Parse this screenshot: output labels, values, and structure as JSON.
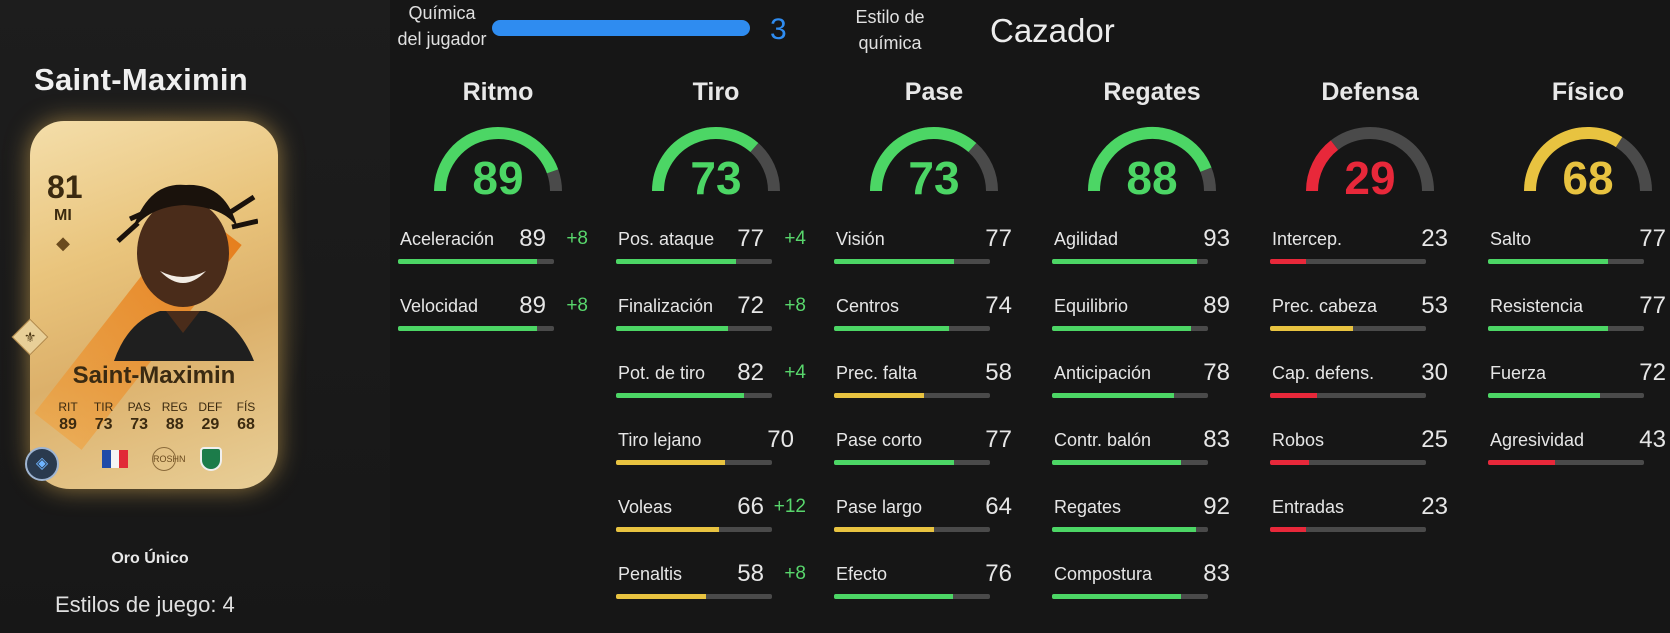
{
  "player": {
    "title": "Saint-Maximin",
    "card_type": "Oro Único",
    "playstyles": "Estilos de juego: 4"
  },
  "card": {
    "rating": "81",
    "position": "MI",
    "name": "Saint-Maximin",
    "stats": [
      {
        "label": "RIT",
        "value": "89"
      },
      {
        "label": "TIR",
        "value": "73"
      },
      {
        "label": "PAS",
        "value": "73"
      },
      {
        "label": "REG",
        "value": "88"
      },
      {
        "label": "DEF",
        "value": "29"
      },
      {
        "label": "FÍS",
        "value": "68"
      }
    ],
    "league_text": "ROSHN"
  },
  "chemistry": {
    "label": "Química del jugador",
    "value": "3",
    "style_label": "Estilo de química",
    "style_value": "Cazador"
  },
  "colors": {
    "green": "#4cd665",
    "yellow": "#e8c340",
    "red": "#e8283a",
    "chem_blue": "#2f8cf0"
  },
  "columns": [
    {
      "title": "Ritmo",
      "value": "89",
      "level": 0.89,
      "color": "green",
      "stats": [
        {
          "name": "Aceleración",
          "value": "89",
          "bonus": "+8",
          "level": 0.89,
          "color": "green"
        },
        {
          "name": "Velocidad",
          "value": "89",
          "bonus": "+8",
          "level": 0.89,
          "color": "green"
        }
      ]
    },
    {
      "title": "Tiro",
      "value": "73",
      "level": 0.73,
      "color": "green",
      "stats": [
        {
          "name": "Pos. ataque",
          "value": "77",
          "bonus": "+4",
          "level": 0.77,
          "color": "green"
        },
        {
          "name": "Finalización",
          "value": "72",
          "bonus": "+8",
          "level": 0.72,
          "color": "green"
        },
        {
          "name": "Pot. de tiro",
          "value": "82",
          "bonus": "+4",
          "level": 0.82,
          "color": "green"
        },
        {
          "name": "Tiro lejano",
          "value": "70",
          "bonus": "",
          "level": 0.7,
          "color": "yellow"
        },
        {
          "name": "Voleas",
          "value": "66",
          "bonus": "+12",
          "level": 0.66,
          "color": "yellow"
        },
        {
          "name": "Penaltis",
          "value": "58",
          "bonus": "+8",
          "level": 0.58,
          "color": "yellow"
        }
      ]
    },
    {
      "title": "Pase",
      "value": "73",
      "level": 0.73,
      "color": "green",
      "stats": [
        {
          "name": "Visión",
          "value": "77",
          "bonus": "",
          "level": 0.77,
          "color": "green"
        },
        {
          "name": "Centros",
          "value": "74",
          "bonus": "",
          "level": 0.74,
          "color": "green"
        },
        {
          "name": "Prec. falta",
          "value": "58",
          "bonus": "",
          "level": 0.58,
          "color": "yellow"
        },
        {
          "name": "Pase corto",
          "value": "77",
          "bonus": "",
          "level": 0.77,
          "color": "green"
        },
        {
          "name": "Pase largo",
          "value": "64",
          "bonus": "",
          "level": 0.64,
          "color": "yellow"
        },
        {
          "name": "Efecto",
          "value": "76",
          "bonus": "",
          "level": 0.76,
          "color": "green"
        }
      ]
    },
    {
      "title": "Regates",
      "value": "88",
      "level": 0.88,
      "color": "green",
      "stats": [
        {
          "name": "Agilidad",
          "value": "93",
          "bonus": "",
          "level": 0.93,
          "color": "green"
        },
        {
          "name": "Equilibrio",
          "value": "89",
          "bonus": "",
          "level": 0.89,
          "color": "green"
        },
        {
          "name": "Anticipación",
          "value": "78",
          "bonus": "",
          "level": 0.78,
          "color": "green"
        },
        {
          "name": "Contr. balón",
          "value": "83",
          "bonus": "",
          "level": 0.83,
          "color": "green"
        },
        {
          "name": "Regates",
          "value": "92",
          "bonus": "",
          "level": 0.92,
          "color": "green"
        },
        {
          "name": "Compostura",
          "value": "83",
          "bonus": "",
          "level": 0.83,
          "color": "green"
        }
      ]
    },
    {
      "title": "Defensa",
      "value": "29",
      "level": 0.29,
      "color": "red",
      "stats": [
        {
          "name": "Intercep.",
          "value": "23",
          "bonus": "",
          "level": 0.23,
          "color": "red"
        },
        {
          "name": "Prec. cabeza",
          "value": "53",
          "bonus": "",
          "level": 0.53,
          "color": "yellow"
        },
        {
          "name": "Cap. defens.",
          "value": "30",
          "bonus": "",
          "level": 0.3,
          "color": "red"
        },
        {
          "name": "Robos",
          "value": "25",
          "bonus": "",
          "level": 0.25,
          "color": "red"
        },
        {
          "name": "Entradas",
          "value": "23",
          "bonus": "",
          "level": 0.23,
          "color": "red"
        }
      ]
    },
    {
      "title": "Físico",
      "value": "68",
      "level": 0.68,
      "color": "yellow",
      "stats": [
        {
          "name": "Salto",
          "value": "77",
          "bonus": "",
          "level": 0.77,
          "color": "green"
        },
        {
          "name": "Resistencia",
          "value": "77",
          "bonus": "",
          "level": 0.77,
          "color": "green"
        },
        {
          "name": "Fuerza",
          "value": "72",
          "bonus": "",
          "level": 0.72,
          "color": "green"
        },
        {
          "name": "Agresividad",
          "value": "43",
          "bonus": "",
          "level": 0.43,
          "color": "red"
        }
      ]
    }
  ]
}
